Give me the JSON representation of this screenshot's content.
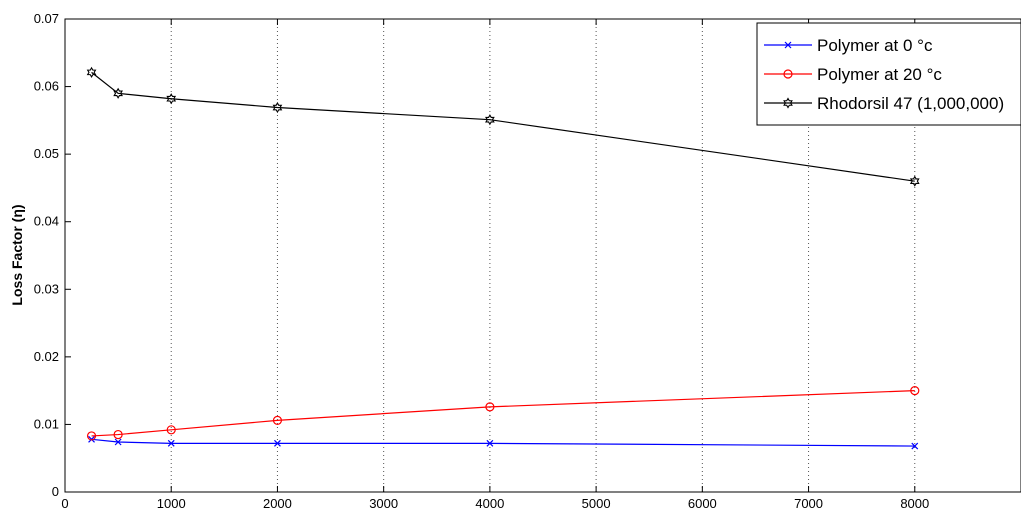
{
  "chart_data": {
    "type": "line",
    "title": "",
    "xlabel": "",
    "ylabel": "Loss Factor (η)",
    "xlim": [
      0,
      9000
    ],
    "ylim": [
      0,
      0.07
    ],
    "x_ticks": [
      0,
      1000,
      2000,
      3000,
      4000,
      5000,
      6000,
      7000,
      8000
    ],
    "y_ticks": [
      0,
      0.01,
      0.02,
      0.03,
      0.04,
      0.05,
      0.06,
      0.07
    ],
    "x_tick_labels": [
      "0",
      "1000",
      "2000",
      "3000",
      "4000",
      "5000",
      "6000",
      "7000",
      "8000"
    ],
    "y_tick_labels": [
      "0",
      "0.01",
      "0.02",
      "0.03",
      "0.04",
      "0.05",
      "0.06",
      "0.07"
    ],
    "grid": "vertical-dotted",
    "legend_position": "top-right",
    "series": [
      {
        "name": "Polymer at 0 °c",
        "color": "#0000ff",
        "marker": "x",
        "x": [
          250,
          500,
          1000,
          2000,
          4000,
          8000
        ],
        "y": [
          0.0078,
          0.0074,
          0.0072,
          0.0072,
          0.0072,
          0.0068
        ]
      },
      {
        "name": "Polymer at 20 °c",
        "color": "#ff0000",
        "marker": "o",
        "x": [
          250,
          500,
          1000,
          2000,
          4000,
          8000
        ],
        "y": [
          0.0083,
          0.0085,
          0.0092,
          0.0106,
          0.0126,
          0.015
        ]
      },
      {
        "name": "Rhodorsil 47 (1,000,000)",
        "color": "#000000",
        "marker": "hexagram",
        "x": [
          250,
          500,
          1000,
          2000,
          4000,
          8000
        ],
        "y": [
          0.0621,
          0.059,
          0.0582,
          0.0569,
          0.0551,
          0.046
        ]
      }
    ]
  }
}
